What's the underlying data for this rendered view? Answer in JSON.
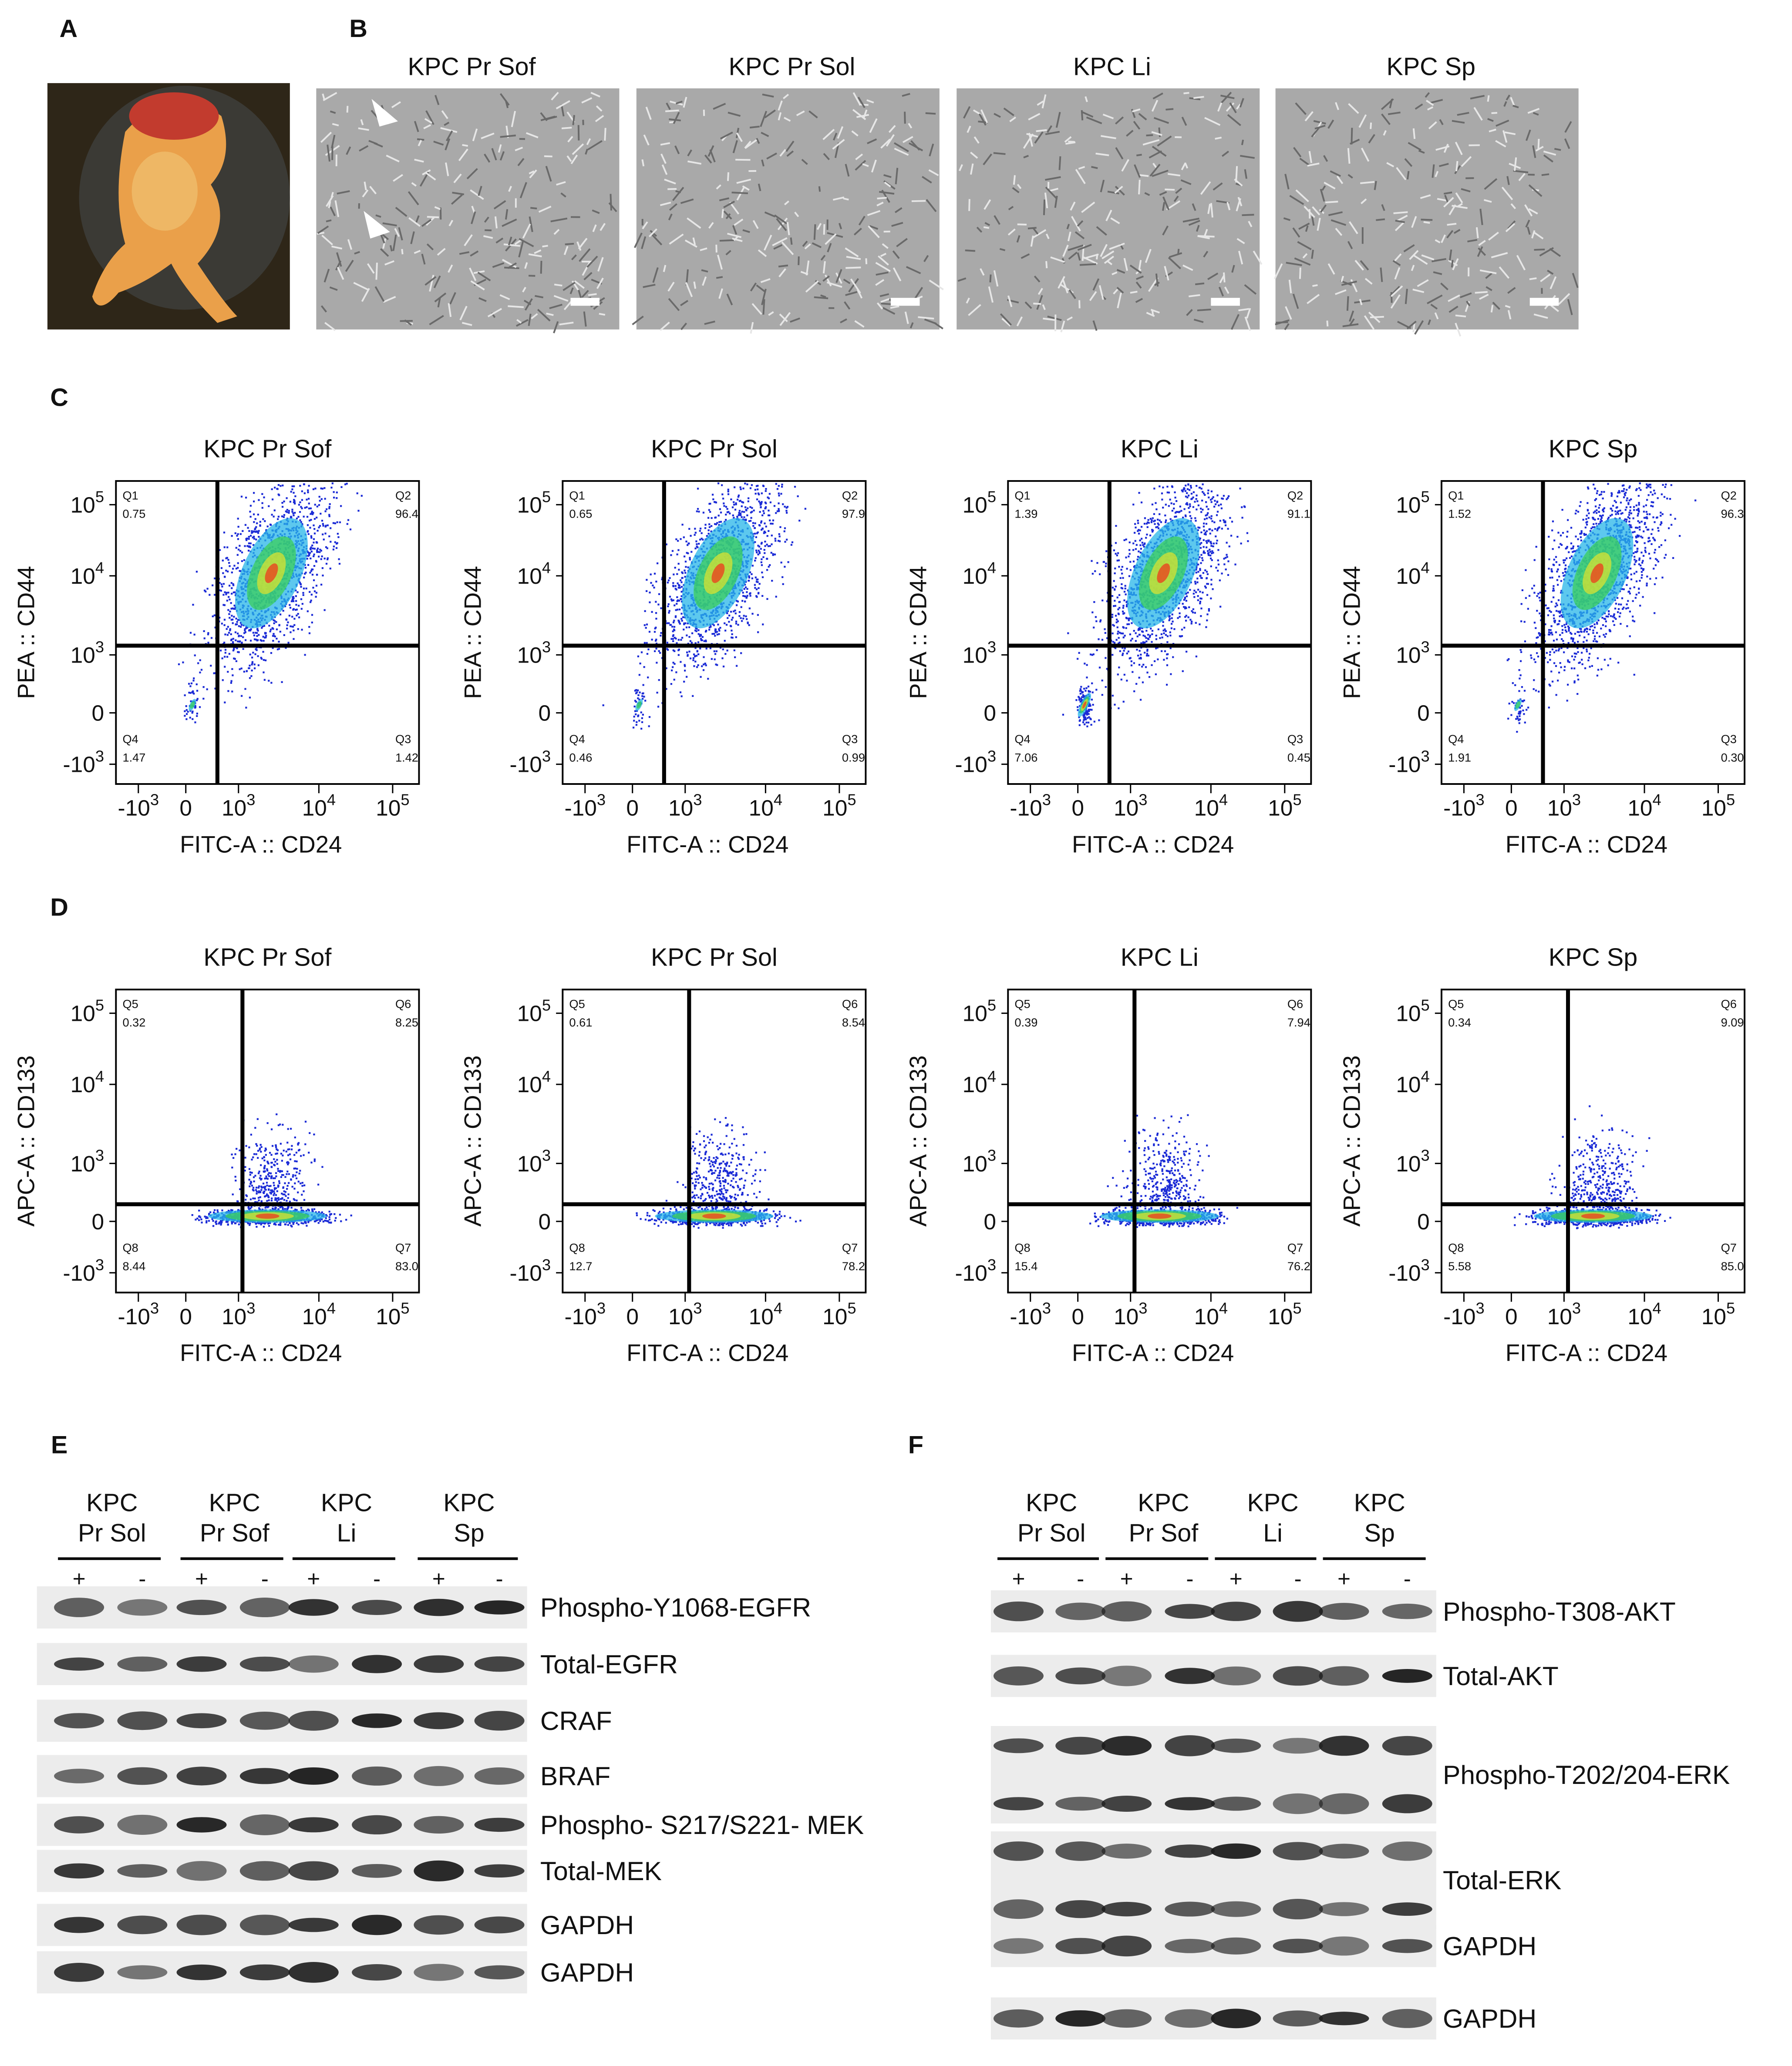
{
  "panel_labels": [
    "A",
    "B",
    "C",
    "D",
    "E",
    "F"
  ],
  "microscopy": {
    "titles": [
      "KPC Pr Sof",
      "KPC Pr Sol",
      "KPC Li",
      "KPC Sp"
    ]
  },
  "flow_ticks": {
    "y": [
      {
        "base": "10",
        "exp": "5"
      },
      {
        "base": "10",
        "exp": "4"
      },
      {
        "base": "10",
        "exp": "3"
      },
      {
        "base": "0"
      },
      {
        "base": "-10",
        "exp": "3"
      }
    ],
    "x": [
      {
        "base": "-10",
        "exp": "3"
      },
      {
        "base": "0"
      },
      {
        "base": "10",
        "exp": "3"
      },
      {
        "base": "10",
        "exp": "4"
      },
      {
        "base": "10",
        "exp": "5"
      }
    ]
  },
  "flow_c": {
    "x_label": "FITC-A :: CD24",
    "y_label": "PEA :: CD44",
    "quadrant_names": [
      "Q1",
      "Q2",
      "Q3",
      "Q4"
    ],
    "plots": [
      {
        "title": "KPC Pr Sof",
        "quadrants": [
          "0.75",
          "96.4",
          "1.42",
          "1.47"
        ]
      },
      {
        "title": "KPC Pr Sol",
        "quadrants": [
          "0.65",
          "97.9",
          "0.99",
          "0.46"
        ]
      },
      {
        "title": "KPC Li",
        "quadrants": [
          "1.39",
          "91.1",
          "0.45",
          "7.06"
        ]
      },
      {
        "title": "KPC Sp",
        "quadrants": [
          "1.52",
          "96.3",
          "0.30",
          "1.91"
        ]
      }
    ]
  },
  "flow_d": {
    "x_label": "FITC-A :: CD24",
    "y_label": "APC-A :: CD133",
    "quadrant_names": [
      "Q5",
      "Q6",
      "Q7",
      "Q8"
    ],
    "plots": [
      {
        "title": "KPC Pr Sof",
        "quadrants": [
          "0.32",
          "8.25",
          "83.0",
          "8.44"
        ]
      },
      {
        "title": "KPC Pr Sol",
        "quadrants": [
          "0.61",
          "8.54",
          "78.2",
          "12.7"
        ]
      },
      {
        "title": "KPC Li",
        "quadrants": [
          "0.39",
          "7.94",
          "76.2",
          "15.4"
        ]
      },
      {
        "title": "KPC Sp",
        "quadrants": [
          "0.34",
          "9.09",
          "85.0",
          "5.58"
        ]
      }
    ]
  },
  "blot_e": {
    "groups": [
      {
        "line1": "KPC",
        "line2": "Pr Sol"
      },
      {
        "line1": "KPC",
        "line2": "Pr Sof"
      },
      {
        "line1": "KPC",
        "line2": "Li"
      },
      {
        "line1": "KPC",
        "line2": "Sp"
      }
    ],
    "signs": [
      "+",
      "-"
    ],
    "proteins": [
      "Phospho-Y1068-EGFR",
      "Total-EGFR",
      "CRAF",
      "BRAF",
      "Phospho- S217/S221- MEK",
      "Total-MEK",
      "GAPDH",
      "GAPDH"
    ]
  },
  "blot_f": {
    "groups": [
      {
        "line1": "KPC",
        "line2": "Pr Sol"
      },
      {
        "line1": "KPC",
        "line2": "Pr Sof"
      },
      {
        "line1": "KPC",
        "line2": "Li"
      },
      {
        "line1": "KPC",
        "line2": "Sp"
      }
    ],
    "signs": [
      "+",
      "-"
    ],
    "proteins": [
      "Phospho-T308-AKT",
      "Total-AKT",
      "Phospho-T202/204-ERK",
      "Total-ERK",
      "GAPDH",
      "GAPDH"
    ]
  }
}
